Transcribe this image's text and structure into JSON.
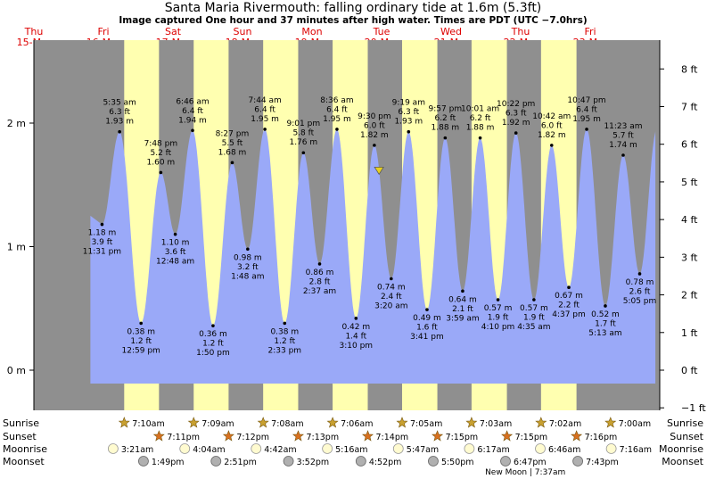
{
  "chart_data": {
    "type": "area",
    "title": "Santa Maria Rivermouth: falling  ordinary tide at 1.6m (5.3ft)",
    "subtitle": "Image captured One hour and 37 minutes after high water. Times are PDT (UTC −7.0hrs)",
    "y_left_label_unit": "m",
    "y_right_label_unit": "ft",
    "y_left_ticks": [
      {
        "v": 0,
        "label": "0 m"
      },
      {
        "v": 1,
        "label": "1 m"
      },
      {
        "v": 2,
        "label": "2 m"
      }
    ],
    "y_right_ticks": [
      {
        "v": -1,
        "label": "−1 ft"
      },
      {
        "v": 0,
        "label": "0 ft"
      },
      {
        "v": 1,
        "label": "1 ft"
      },
      {
        "v": 2,
        "label": "2 ft"
      },
      {
        "v": 3,
        "label": "3 ft"
      },
      {
        "v": 4,
        "label": "4 ft"
      },
      {
        "v": 5,
        "label": "5 ft"
      },
      {
        "v": 6,
        "label": "6 ft"
      },
      {
        "v": 7,
        "label": "7 ft"
      },
      {
        "v": 8,
        "label": "8 ft"
      }
    ],
    "ylim_m": [
      -0.34,
      2.82
    ],
    "time_start_label": "Thu 15-Mar 00:00",
    "days": [
      {
        "d": "Thu",
        "date": "15-Mar"
      },
      {
        "d": "Fri",
        "date": "16-Mar"
      },
      {
        "d": "Sat",
        "date": "17-Mar"
      },
      {
        "d": "Sun",
        "date": "18-Mar"
      },
      {
        "d": "Mon",
        "date": "19-Mar"
      },
      {
        "d": "Tue",
        "date": "20-Mar"
      },
      {
        "d": "Wed",
        "date": "21-Mar"
      },
      {
        "d": "Thu",
        "date": "22-Mar"
      },
      {
        "d": "Fri",
        "date": "23-Mar"
      }
    ],
    "daylight_hours": [
      [
        31.17,
        43.18
      ],
      [
        55.15,
        67.2
      ],
      [
        79.13,
        91.22
      ],
      [
        103.1,
        115.23
      ],
      [
        127.08,
        139.25
      ],
      [
        151.05,
        163.25
      ],
      [
        175.03,
        187.27
      ]
    ],
    "tides": [
      {
        "h": 23.52,
        "m": 1.18,
        "ft": "3.9 ft",
        "time": "11:31 pm",
        "hi": false
      },
      {
        "h": 29.58,
        "m": 1.93,
        "ft": "6.3 ft",
        "time": "5:35 am",
        "hi": true
      },
      {
        "h": 36.98,
        "m": 0.38,
        "ft": "1.2 ft",
        "time": "12:59 pm",
        "hi": false
      },
      {
        "h": 43.8,
        "m": 1.6,
        "ft": "5.2 ft",
        "time": "7:48 pm",
        "hi": true
      },
      {
        "h": 48.8,
        "m": 1.1,
        "ft": "3.6 ft",
        "time": "12:48 am",
        "hi": false
      },
      {
        "h": 54.77,
        "m": 1.94,
        "ft": "6.4 ft",
        "time": "6:46 am",
        "hi": true
      },
      {
        "h": 61.83,
        "m": 0.36,
        "ft": "1.2 ft",
        "time": "1:50 pm",
        "hi": false
      },
      {
        "h": 68.45,
        "m": 1.68,
        "ft": "5.5 ft",
        "time": "8:27 pm",
        "hi": true
      },
      {
        "h": 73.8,
        "m": 0.98,
        "ft": "3.2 ft",
        "time": "1:48 am",
        "hi": false
      },
      {
        "h": 79.73,
        "m": 1.95,
        "ft": "6.4 ft",
        "time": "7:44 am",
        "hi": true
      },
      {
        "h": 86.55,
        "m": 0.38,
        "ft": "1.2 ft",
        "time": "2:33 pm",
        "hi": false
      },
      {
        "h": 93.02,
        "m": 1.76,
        "ft": "5.8 ft",
        "time": "9:01 pm",
        "hi": true
      },
      {
        "h": 98.62,
        "m": 0.86,
        "ft": "2.8 ft",
        "time": "2:37 am",
        "hi": false
      },
      {
        "h": 104.6,
        "m": 1.95,
        "ft": "6.4 ft",
        "time": "8:36 am",
        "hi": true
      },
      {
        "h": 111.17,
        "m": 0.42,
        "ft": "1.4 ft",
        "time": "3:10 pm",
        "hi": false
      },
      {
        "h": 117.5,
        "m": 1.82,
        "ft": "6.0 ft",
        "time": "9:30 pm",
        "hi": true
      },
      {
        "h": 123.33,
        "m": 0.74,
        "ft": "2.4 ft",
        "time": "3:20 am",
        "hi": false
      },
      {
        "h": 129.32,
        "m": 1.93,
        "ft": "6.3 ft",
        "time": "9:19 am",
        "hi": true
      },
      {
        "h": 135.68,
        "m": 0.49,
        "ft": "1.6 ft",
        "time": "3:41 pm",
        "hi": false
      },
      {
        "h": 141.95,
        "m": 1.88,
        "ft": "6.2 ft",
        "time": "9:57 pm",
        "hi": true
      },
      {
        "h": 147.98,
        "m": 0.64,
        "ft": "2.1 ft",
        "time": "3:59 am",
        "hi": false
      },
      {
        "h": 154.02,
        "m": 1.88,
        "ft": "6.2 ft",
        "time": "10:01 am",
        "hi": true
      },
      {
        "h": 160.17,
        "m": 0.57,
        "ft": "1.9 ft",
        "time": "4:10 pm",
        "hi": false
      },
      {
        "h": 166.37,
        "m": 1.92,
        "ft": "6.3 ft",
        "time": "10:22 pm",
        "hi": true
      },
      {
        "h": 172.58,
        "m": 0.57,
        "ft": "1.9 ft",
        "time": "4:35 am",
        "hi": false
      },
      {
        "h": 178.7,
        "m": 1.82,
        "ft": "6.0 ft",
        "time": "10:42 am",
        "hi": true
      },
      {
        "h": 184.62,
        "m": 0.67,
        "ft": "2.2 ft",
        "time": "4:37 pm",
        "hi": false
      },
      {
        "h": 190.78,
        "m": 1.95,
        "ft": "6.4 ft",
        "time": "10:47 pm",
        "hi": true
      },
      {
        "h": 197.22,
        "m": 0.52,
        "ft": "1.7 ft",
        "time": "5:13 am",
        "hi": false
      },
      {
        "h": 203.38,
        "m": 1.74,
        "ft": "5.7 ft",
        "time": "11:23 am",
        "hi": true
      },
      {
        "h": 209.08,
        "m": 0.78,
        "ft": "2.6 ft",
        "time": "5:05 pm",
        "hi": false
      }
    ],
    "current_marker": {
      "h": 119.12,
      "m": 1.6
    },
    "astro_rows": [
      {
        "label": "Sunrise",
        "kind": "sun",
        "items": [
          {
            "h": 31.17,
            "text": "7:10am"
          },
          {
            "h": 55.15,
            "text": "7:09am"
          },
          {
            "h": 79.13,
            "text": "7:08am"
          },
          {
            "h": 103.1,
            "text": "7:06am"
          },
          {
            "h": 127.08,
            "text": "7:05am"
          },
          {
            "h": 151.05,
            "text": "7:03am"
          },
          {
            "h": 175.03,
            "text": "7:02am"
          },
          {
            "h": 199.0,
            "text": "7:00am"
          }
        ]
      },
      {
        "label": "Sunset",
        "kind": "sunset",
        "items": [
          {
            "h": 43.18,
            "text": "7:11pm"
          },
          {
            "h": 67.2,
            "text": "7:12pm"
          },
          {
            "h": 91.22,
            "text": "7:13pm"
          },
          {
            "h": 115.23,
            "text": "7:14pm"
          },
          {
            "h": 139.25,
            "text": "7:15pm"
          },
          {
            "h": 163.25,
            "text": "7:15pm"
          },
          {
            "h": 187.27,
            "text": "7:16pm"
          }
        ]
      },
      {
        "label": "Moonrise",
        "kind": "moonrise",
        "items": [
          {
            "h": 27.35,
            "text": "3:21am"
          },
          {
            "h": 52.07,
            "text": "4:04am"
          },
          {
            "h": 76.7,
            "text": "4:42am"
          },
          {
            "h": 101.27,
            "text": "5:16am"
          },
          {
            "h": 125.78,
            "text": "5:47am"
          },
          {
            "h": 150.28,
            "text": "6:17am"
          },
          {
            "h": 174.77,
            "text": "6:46am"
          },
          {
            "h": 199.27,
            "text": "7:16am"
          }
        ]
      },
      {
        "label": "Moonset",
        "kind": "moonset",
        "items": [
          {
            "h": 37.82,
            "text": "1:49pm"
          },
          {
            "h": 62.85,
            "text": "2:51pm"
          },
          {
            "h": 87.87,
            "text": "3:52pm"
          },
          {
            "h": 112.87,
            "text": "4:52pm"
          },
          {
            "h": 137.83,
            "text": "5:50pm"
          },
          {
            "h": 162.78,
            "text": "6:47pm"
          },
          {
            "h": 187.72,
            "text": "7:43pm"
          }
        ]
      }
    ],
    "moon_phase_note": "New Moon | 7:37am",
    "colors": {
      "night": "#8f8f8f",
      "day": "#ffffb0",
      "water": "#9aa9f8",
      "date_text": "#dd0000",
      "sun": "#c8a030",
      "sunset": "#d87020",
      "marker": "#e8d020"
    }
  }
}
